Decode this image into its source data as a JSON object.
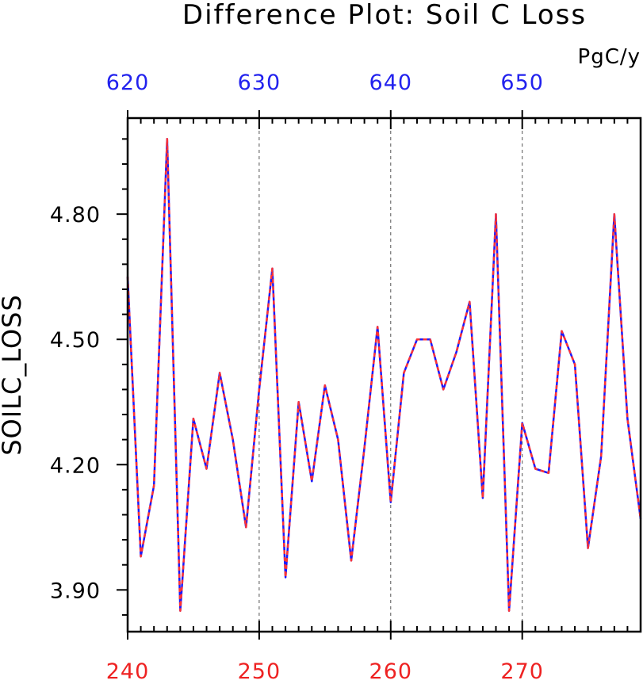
{
  "chart_data": {
    "type": "line",
    "title": "Difference Plot: Soil C Loss",
    "units": "PgC/y",
    "ylabel": "SOILC_LOSS",
    "xlabel": "",
    "xlim": [
      240,
      279
    ],
    "ylim": [
      3.8,
      5.03
    ],
    "yticks": [
      "3.90",
      "4.20",
      "4.50",
      "4.80"
    ],
    "yticks_values": [
      3.9,
      4.2,
      4.5,
      4.8
    ],
    "xticks_bottom": [
      "240",
      "250",
      "260",
      "270"
    ],
    "xticks_bottom_values": [
      240,
      250,
      260,
      270
    ],
    "xticks_top": [
      "620",
      "630",
      "640",
      "650"
    ],
    "xticks_top_values": [
      620,
      630,
      640,
      650
    ],
    "grid": "vertical dashed at major x ticks",
    "colors": {
      "bottom_axis_labels": "#ee2222",
      "top_axis_labels": "#2222ee",
      "series_primary": "#1a1aff",
      "series_secondary": "#ff3333"
    },
    "x": [
      240,
      241,
      242,
      243,
      244,
      245,
      246,
      247,
      248,
      249,
      250,
      251,
      252,
      253,
      254,
      255,
      256,
      257,
      258,
      259,
      260,
      261,
      262,
      263,
      264,
      265,
      266,
      267,
      268,
      269,
      270,
      271,
      272,
      273,
      274,
      275,
      276,
      277,
      278,
      279
    ],
    "series": [
      {
        "values": [
          4.65,
          3.98,
          4.15,
          4.98,
          3.85,
          4.31,
          4.19,
          4.42,
          4.26,
          4.05,
          4.38,
          4.67,
          3.93,
          4.35,
          4.16,
          4.39,
          4.26,
          3.97,
          4.24,
          4.53,
          4.11,
          4.42,
          4.5,
          4.5,
          4.38,
          4.47,
          4.59,
          4.12,
          4.8,
          3.85,
          4.3,
          4.19,
          4.18,
          4.52,
          4.44,
          4.0,
          4.22,
          4.8,
          4.31,
          4.07
        ]
      },
      {
        "values": [
          4.65,
          3.98,
          4.15,
          4.98,
          3.85,
          4.31,
          4.19,
          4.42,
          4.26,
          4.05,
          4.38,
          4.67,
          3.93,
          4.35,
          4.16,
          4.39,
          4.26,
          3.97,
          4.24,
          4.53,
          4.11,
          4.42,
          4.5,
          4.5,
          4.38,
          4.47,
          4.59,
          4.12,
          4.8,
          3.85,
          4.3,
          4.19,
          4.18,
          4.52,
          4.44,
          4.0,
          4.22,
          4.8,
          4.31,
          4.07
        ]
      }
    ]
  }
}
